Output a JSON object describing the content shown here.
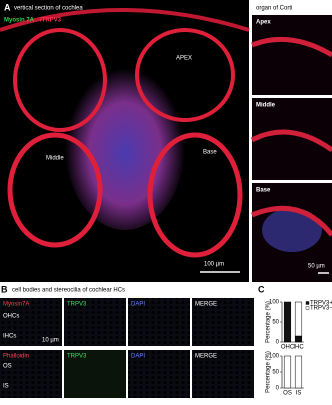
{
  "panel_a": {
    "label": "A",
    "title": "vertical section of cochlea",
    "stain_green": "Myosin 7A",
    "stain_red": "/TRPV3",
    "apex": "APEX",
    "middle": "Middle",
    "base": "Base",
    "scale": "100 µm",
    "right_title": "organ of Corti",
    "right_panels": [
      "Apex",
      "Middle",
      "Base"
    ],
    "right_scale": "50 µm"
  },
  "panel_b": {
    "label": "B",
    "title": "cell bodies and stereocilia of cochlear HCs",
    "row1": [
      "Myosin7A",
      "TRPV3",
      "DAPI",
      "MERGE"
    ],
    "row2": [
      "Phalloidin",
      "TRPV3",
      "DAPI",
      "MERGE"
    ],
    "ohc": "OHCs",
    "ihc": "IHCs",
    "os": "OS",
    "is": "IS",
    "scale": "10 µm"
  },
  "panel_c": {
    "label": "C"
  },
  "chart_data": [
    {
      "type": "bar",
      "stacked": true,
      "ylabel": "Percentage (%)",
      "categories": [
        "OHC",
        "IHC"
      ],
      "series": [
        {
          "name": "TRPV3+",
          "color": "#111111",
          "values": [
            100,
            15
          ]
        },
        {
          "name": "TRPV3−",
          "color": "#ffffff",
          "values": [
            0,
            85
          ]
        }
      ],
      "ylim": [
        0,
        100
      ],
      "yticks": [
        0,
        50,
        100
      ],
      "legend": "top-right"
    },
    {
      "type": "bar",
      "stacked": true,
      "ylabel": "Percentage (%)",
      "categories": [
        "OS",
        "IS"
      ],
      "series": [
        {
          "name": "TRPV3+",
          "color": "#111111",
          "values": [
            0,
            0
          ]
        },
        {
          "name": "TRPV3−",
          "color": "#ffffff",
          "values": [
            100,
            100
          ]
        }
      ],
      "ylim": [
        0,
        100
      ],
      "yticks": [
        0,
        50,
        100
      ]
    }
  ]
}
